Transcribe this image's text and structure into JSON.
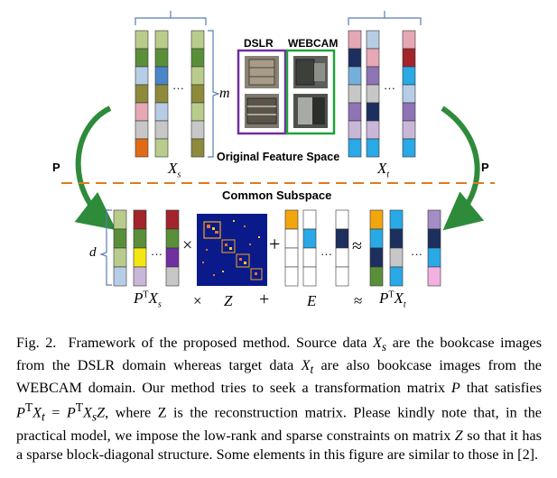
{
  "figure": {
    "labels": {
      "dslr": "DSLR",
      "webcam": "WEBCAM",
      "original_space": "Original Feature Space",
      "common_subspace": "Common Subspace",
      "p_left": "P",
      "p_right": "P",
      "m": "m",
      "d": "d",
      "xs": "X",
      "xs_sub": "s",
      "xt": "X",
      "xt_sub": "t",
      "times": "×",
      "plus": "+",
      "approx": "≈",
      "dots": "…",
      "vdots": "⋮"
    },
    "bottom_formula": {
      "pt_xs": "P",
      "pt_xs_sup": "T",
      "pt_xs_x": "X",
      "pt_xs_sub": "s",
      "times": "×",
      "z": "Z",
      "plus": "+",
      "e": "E",
      "approx": "≈",
      "pt_xt": "P",
      "pt_xt_sup": "T",
      "pt_xt_x": "X",
      "pt_xt_sub": "t"
    },
    "colors": {
      "source_frame": "#7030a0",
      "target_frame": "#22a33a",
      "arrow_green": "#2e8b3a",
      "dashed_line": "#e07a1f",
      "matrix_bg": "#0a1a8a"
    }
  },
  "caption": {
    "fig_label": "Fig. 2.",
    "t1": "Framework of the proposed method. Source data ",
    "xs_base": "X",
    "xs_sub": "s",
    "t2": " are the bookcase images from the DSLR domain whereas target data ",
    "xt_base": "X",
    "xt_sub": "t",
    "t3": " are also bookcase images from the WEBCAM domain. Our method tries to seek a transformation matrix ",
    "p1": "P",
    "t4": " that satisfies ",
    "eq1_p": "P",
    "eq1_sup": "T",
    "eq1_x": "X",
    "eq1_sub": "t",
    "eq1_eq": " = ",
    "eq2_p": "P",
    "eq2_sup": "T",
    "eq2_x": "X",
    "eq2_sub": "s",
    "eq2_z": "Z",
    "t5": ", where Z is the reconstruction matrix. Please kindly note that, in the practical model, we impose the low-rank and sparse constraints on matrix ",
    "z2": "Z",
    "t6": " so that it has a sparse block-diagonal structure. Some elements in this figure are similar to those in [2]."
  }
}
